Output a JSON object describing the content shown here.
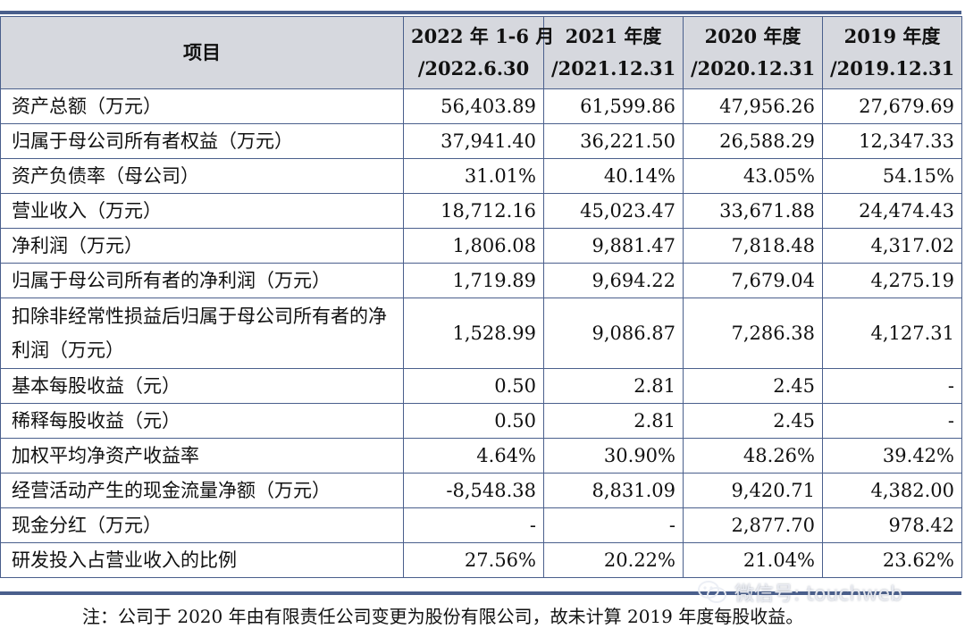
{
  "table": {
    "columns": {
      "item": "项目",
      "col1_line1": "2022 年 1-6 月",
      "col1_line2": "/2022.6.30",
      "col2_line1": "2021 年度",
      "col2_line2": "/2021.12.31",
      "col3_line1": "2020 年度",
      "col3_line2": "/2020.12.31",
      "col4_line1": "2019 年度",
      "col4_line2": "/2019.12.31"
    },
    "rows": [
      {
        "label": "资产总额（万元）",
        "v1": "56,403.89",
        "v2": "61,599.86",
        "v3": "47,956.26",
        "v4": "27,679.69"
      },
      {
        "label": "归属于母公司所有者权益（万元）",
        "v1": "37,941.40",
        "v2": "36,221.50",
        "v3": "26,588.29",
        "v4": "12,347.33"
      },
      {
        "label": "资产负债率（母公司）",
        "v1": "31.01%",
        "v2": "40.14%",
        "v3": "43.05%",
        "v4": "54.15%"
      },
      {
        "label": "营业收入（万元）",
        "v1": "18,712.16",
        "v2": "45,023.47",
        "v3": "33,671.88",
        "v4": "24,474.43"
      },
      {
        "label": "净利润（万元）",
        "v1": "1,806.08",
        "v2": "9,881.47",
        "v3": "7,818.48",
        "v4": "4,317.02"
      },
      {
        "label": "归属于母公司所有者的净利润（万元）",
        "v1": "1,719.89",
        "v2": "9,694.22",
        "v3": "7,679.04",
        "v4": "4,275.19"
      },
      {
        "label": "扣除非经常性损益后归属于母公司所有者的净利润（万元）",
        "v1": "1,528.99",
        "v2": "9,086.87",
        "v3": "7,286.38",
        "v4": "4,127.31"
      },
      {
        "label": "基本每股收益（元）",
        "v1": "0.50",
        "v2": "2.81",
        "v3": "2.45",
        "v4": "-"
      },
      {
        "label": "稀释每股收益（元）",
        "v1": "0.50",
        "v2": "2.81",
        "v3": "2.45",
        "v4": "-"
      },
      {
        "label": "加权平均净资产收益率",
        "v1": "4.64%",
        "v2": "30.90%",
        "v3": "48.26%",
        "v4": "39.42%"
      },
      {
        "label": "经营活动产生的现金流量净额（万元）",
        "v1": "-8,548.38",
        "v2": "8,831.09",
        "v3": "9,420.71",
        "v4": "4,382.00"
      },
      {
        "label": "现金分红（万元）",
        "v1": "-",
        "v2": "-",
        "v3": "2,877.70",
        "v4": "978.42"
      },
      {
        "label": "研发投入占营业收入的比例",
        "v1": "27.56%",
        "v2": "20.22%",
        "v3": "21.04%",
        "v4": "23.62%"
      }
    ]
  },
  "note": "注：公司于 2020 年由有限责任公司变更为股份有限公司，故未计算 2019 年度每股收益。",
  "watermark": {
    "icon": "wechat-icon",
    "text": "微信号: touchweb"
  }
}
